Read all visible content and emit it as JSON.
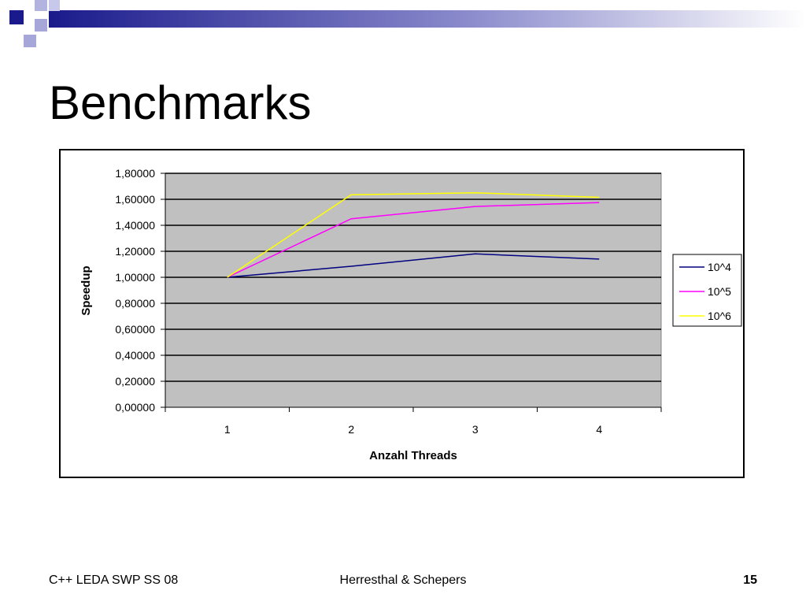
{
  "slide": {
    "title": "Benchmarks",
    "footer_left": "C++ LEDA SWP SS 08",
    "footer_center": "Herresthal & Schepers",
    "page_number": "15"
  },
  "colors": {
    "decor_dark": "#1a1a8c",
    "decor_light": "#a6a6d9",
    "plot_bg": "#c0c0c0"
  },
  "chart_data": {
    "type": "line",
    "x": [
      1,
      2,
      3,
      4
    ],
    "categories": [
      "1",
      "2",
      "3",
      "4"
    ],
    "series": [
      {
        "name": "10^4",
        "values": [
          1.0,
          1.085,
          1.18,
          1.14
        ],
        "color": "#000080"
      },
      {
        "name": "10^5",
        "values": [
          1.0,
          1.45,
          1.545,
          1.575
        ],
        "color": "#ff00ff"
      },
      {
        "name": "10^6",
        "values": [
          1.0,
          1.635,
          1.65,
          1.615
        ],
        "color": "#ffff00"
      }
    ],
    "xlabel": "Anzahl Threads",
    "ylabel": "Speedup",
    "ylim": [
      0,
      1.8
    ],
    "yticks": [
      "0,00000",
      "0,20000",
      "0,40000",
      "0,60000",
      "0,80000",
      "1,00000",
      "1,20000",
      "1,40000",
      "1,60000",
      "1,80000"
    ],
    "grid": true,
    "legend": "right"
  }
}
